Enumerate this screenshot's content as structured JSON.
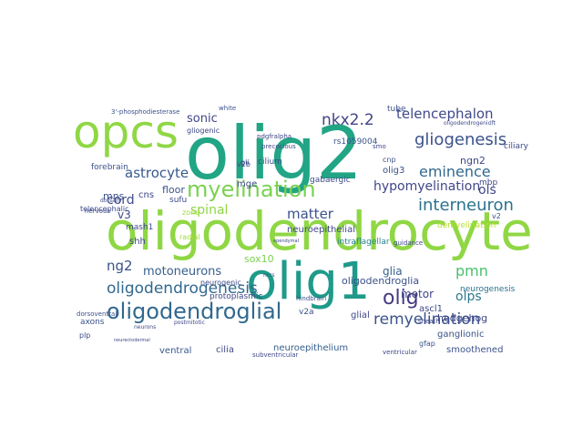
{
  "words": [
    {
      "text": "oligodendrocyte",
      "color": "#8fd744"
    },
    {
      "text": "olig2",
      "color": "#21a585"
    },
    {
      "text": "opcs",
      "color": "#8fd744"
    },
    {
      "text": "olig1",
      "color": "#1f9a8a"
    },
    {
      "text": "myelination",
      "color": "#7ad151"
    },
    {
      "text": "oligodendroglial",
      "color": "#31688e"
    },
    {
      "text": "olig",
      "color": "#443a83"
    },
    {
      "text": "oligodendrogenesis",
      "color": "#31688e"
    },
    {
      "text": "remyelination",
      "color": "#3b528b"
    },
    {
      "text": "nkx2.2",
      "color": "#414487"
    },
    {
      "text": "gliogenesis",
      "color": "#3b528b"
    },
    {
      "text": "telencephalon",
      "color": "#3e4989"
    },
    {
      "text": "eminence",
      "color": "#31688e"
    },
    {
      "text": "interneuron",
      "color": "#2c728e"
    },
    {
      "text": "hypomyelination",
      "color": "#404688"
    },
    {
      "text": "astrocyte",
      "color": "#38588c"
    },
    {
      "text": "matter",
      "color": "#3b528b"
    },
    {
      "text": "motoneurons",
      "color": "#355f8d"
    },
    {
      "text": "spinal",
      "color": "#8fd744"
    },
    {
      "text": "pmn",
      "color": "#4ac16d"
    },
    {
      "text": "ng2",
      "color": "#3b528b"
    },
    {
      "text": "sonic",
      "color": "#404688"
    },
    {
      "text": "cord",
      "color": "#3e4989"
    },
    {
      "text": "olps",
      "color": "#2a788e"
    },
    {
      "text": "glia",
      "color": "#35608d"
    },
    {
      "text": "motor",
      "color": "#404688"
    },
    {
      "text": "v3",
      "color": "#3e4989"
    },
    {
      "text": "ols",
      "color": "#3f4788"
    },
    {
      "text": "mns",
      "color": "#3b528b"
    },
    {
      "text": "ngn2",
      "color": "#3f4788"
    },
    {
      "text": "olig3",
      "color": "#3b528b"
    },
    {
      "text": "sox10",
      "color": "#7ad151"
    },
    {
      "text": "hedgehog",
      "color": "#404688"
    },
    {
      "text": "ganglionic",
      "color": "#3b528b"
    },
    {
      "text": "smoothened",
      "color": "#3b528b"
    },
    {
      "text": "ascl1",
      "color": "#3e4989"
    },
    {
      "text": "oligodendroglia",
      "color": "#3b528b"
    },
    {
      "text": "neurogenesis",
      "color": "#2c728e"
    },
    {
      "text": "neuroepithelial",
      "color": "#404688"
    },
    {
      "text": "intraflagellar",
      "color": "#26828e"
    },
    {
      "text": "demyelination",
      "color": "#b5de2b"
    },
    {
      "text": "glial",
      "color": "#3e4989"
    },
    {
      "text": "neuroepithelium",
      "color": "#35608d"
    },
    {
      "text": "ventral",
      "color": "#38588c"
    },
    {
      "text": "cilia",
      "color": "#3e4989"
    },
    {
      "text": "protoplasmic",
      "color": "#3e4989"
    },
    {
      "text": "ventricular",
      "color": "#404688"
    },
    {
      "text": "gfap",
      "color": "#3b528b"
    },
    {
      "text": "axons",
      "color": "#3b528b"
    },
    {
      "text": "cnp",
      "color": "#3b528b"
    },
    {
      "text": "mbp",
      "color": "#3e4989"
    },
    {
      "text": "ciliary",
      "color": "#3e4989"
    },
    {
      "text": "cilium",
      "color": "#3e4989"
    },
    {
      "text": "gabaergic",
      "color": "#3e4989"
    },
    {
      "text": "rs1059004",
      "color": "#3b528b"
    },
    {
      "text": "floor",
      "color": "#3b528b"
    },
    {
      "text": "cns",
      "color": "#3e4989"
    },
    {
      "text": "mge",
      "color": "#3e4989"
    },
    {
      "text": "shh",
      "color": "#3e4989"
    },
    {
      "text": "v2",
      "color": "#3b528b"
    },
    {
      "text": "v2a",
      "color": "#3b528b"
    },
    {
      "text": "v2b",
      "color": "#3e4989"
    },
    {
      "text": "mash1",
      "color": "#3e4989"
    },
    {
      "text": "forebrain",
      "color": "#3b528b"
    },
    {
      "text": "telencephalic",
      "color": "#3e4989"
    },
    {
      "text": "gliogenic",
      "color": "#3e4989"
    },
    {
      "text": "precocious",
      "color": "#3e4989"
    },
    {
      "text": "3'-phosphodiesterase",
      "color": "#3b528b"
    },
    {
      "text": "tube",
      "color": "#3b528b"
    },
    {
      "text": "smo",
      "color": "#3e4989"
    },
    {
      "text": "sufu",
      "color": "#3e4989"
    },
    {
      "text": "neurogenic",
      "color": "#3e4989"
    },
    {
      "text": "zone",
      "color": "#a0da39"
    },
    {
      "text": "radial",
      "color": "#a0da39"
    },
    {
      "text": "guidance",
      "color": "#3e4989"
    },
    {
      "text": "hindbrain",
      "color": "#3b528b"
    },
    {
      "text": "nrcs",
      "color": "#3b528b"
    },
    {
      "text": "dorsoventral",
      "color": "#3b528b"
    },
    {
      "text": "subventricular",
      "color": "#3e4989"
    },
    {
      "text": "pdgfralpha",
      "color": "#3e4989"
    },
    {
      "text": "oligodendrogenic",
      "color": "#3e4989"
    },
    {
      "text": "white",
      "color": "#3b528b"
    },
    {
      "text": "gli",
      "color": "#3e4989"
    },
    {
      "text": "nervous",
      "color": "#3e4989"
    },
    {
      "text": "dorsally",
      "color": "#3e4989"
    },
    {
      "text": "postmitotic",
      "color": "#3e4989"
    },
    {
      "text": "neurons",
      "color": "#3e4989"
    },
    {
      "text": "plp",
      "color": "#3e4989"
    },
    {
      "text": "sheath",
      "color": "#3e4989"
    },
    {
      "text": "ift",
      "color": "#3e4989"
    },
    {
      "text": "ependymal",
      "color": "#3e4989"
    },
    {
      "text": "neurectodermal",
      "color": "#3e4989"
    }
  ]
}
